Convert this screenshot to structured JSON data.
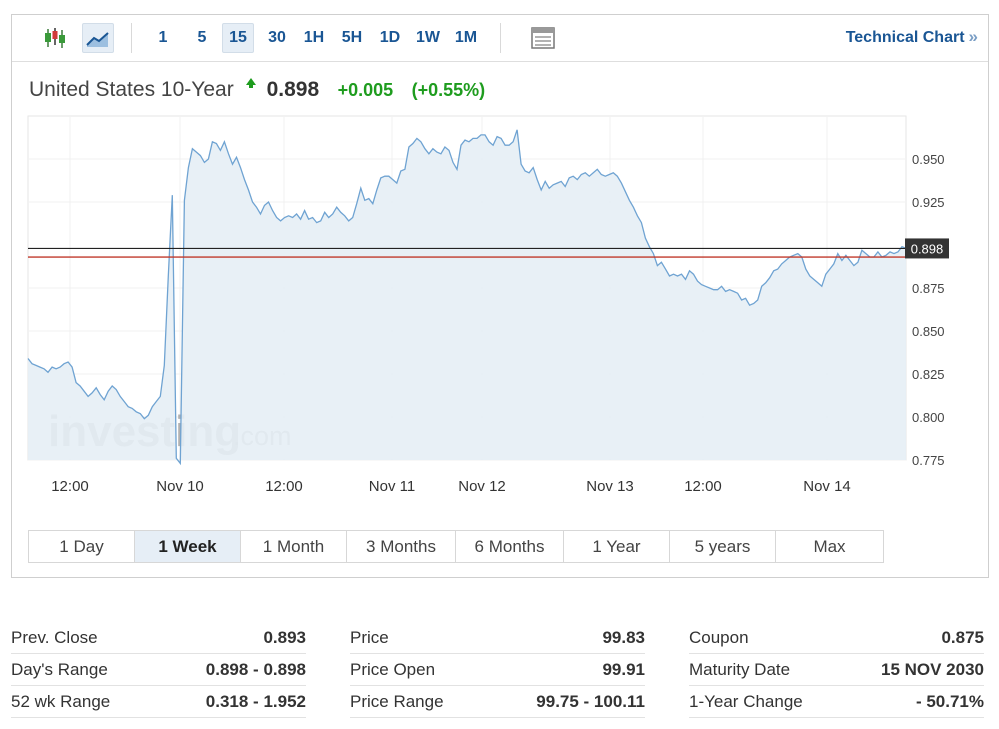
{
  "toolbar": {
    "intervals": [
      "1",
      "5",
      "15",
      "30",
      "1H",
      "5H",
      "1D",
      "1W",
      "1M"
    ],
    "active_interval": "15",
    "technical_chart_label": "Technical Chart",
    "technical_chart_arrows": "»",
    "icons": [
      "candlestick-icon",
      "line-chart-icon",
      "table-view-icon"
    ]
  },
  "quote": {
    "name": "United States 10-Year",
    "price": "0.898",
    "change": "+0.005",
    "change_pct": "(+0.55%)",
    "direction": "up"
  },
  "chart_data": {
    "type": "area",
    "y_ticks": [
      "0.950",
      "0.925",
      "0.875",
      "0.850",
      "0.825",
      "0.800",
      "0.775"
    ],
    "x_ticks": [
      "12:00",
      "Nov 10",
      "12:00",
      "Nov 11",
      "Nov 12",
      "Nov 13",
      "12:00",
      "Nov 14"
    ],
    "ylim": [
      0.775,
      0.975
    ],
    "current_value_label": "0.898",
    "current_value": 0.898,
    "prev_close": 0.893,
    "watermark": "investing",
    "watermark_suffix": ".com",
    "series": [
      {
        "x": [
          0,
          4,
          8,
          12,
          16,
          20,
          24,
          28,
          32,
          36,
          40,
          44,
          48,
          52,
          56,
          60,
          64,
          68,
          72,
          76,
          80,
          84,
          88,
          92,
          96,
          100,
          104,
          108,
          112,
          116,
          120,
          124,
          128,
          132,
          136,
          140,
          144,
          148,
          152,
          156,
          160,
          164,
          168,
          172,
          176,
          180,
          184,
          188,
          192,
          196,
          200,
          204,
          208,
          212,
          216,
          220,
          224,
          228,
          232,
          236,
          240,
          244,
          248,
          252,
          256,
          260,
          264,
          268,
          272,
          276,
          280,
          284,
          288,
          292,
          296,
          300,
          304,
          308,
          312,
          316,
          320,
          324,
          328,
          332,
          336,
          340,
          344,
          348,
          352,
          356,
          360,
          364,
          368,
          372,
          376,
          380,
          384,
          388,
          392,
          396,
          400,
          404,
          408,
          412,
          416,
          420,
          424,
          428,
          432,
          436,
          440,
          444,
          448,
          452,
          456,
          460,
          464,
          468,
          472,
          476,
          480,
          484,
          488,
          492,
          496,
          500,
          504,
          508,
          512,
          516,
          520,
          524,
          528,
          532,
          536,
          540,
          544,
          548,
          552,
          556,
          560,
          564,
          568,
          572,
          576,
          580,
          584,
          588,
          592,
          596,
          600,
          604,
          608,
          612,
          616,
          620,
          624,
          628,
          632,
          636,
          640,
          644,
          648,
          652,
          656,
          660,
          664,
          668,
          672,
          676,
          680,
          684,
          688,
          692,
          696,
          700,
          704,
          708,
          712,
          716,
          720,
          724,
          728,
          732,
          736,
          740,
          744,
          748,
          752,
          756,
          760,
          764,
          768,
          772,
          776,
          780,
          784,
          788,
          792,
          796,
          800,
          804,
          808,
          812,
          816,
          820,
          824,
          828,
          832,
          836,
          840,
          844,
          848,
          852,
          856,
          860,
          864,
          868,
          872,
          876
        ],
        "values": [
          0.834,
          0.831,
          0.83,
          0.829,
          0.828,
          0.826,
          0.829,
          0.828,
          0.829,
          0.831,
          0.832,
          0.829,
          0.82,
          0.818,
          0.815,
          0.812,
          0.814,
          0.817,
          0.813,
          0.81,
          0.815,
          0.818,
          0.816,
          0.812,
          0.809,
          0.806,
          0.805,
          0.803,
          0.802,
          0.799,
          0.801,
          0.806,
          0.809,
          0.812,
          0.83,
          0.882,
          0.929,
          0.776,
          0.773,
          0.926,
          0.945,
          0.956,
          0.954,
          0.952,
          0.948,
          0.95,
          0.96,
          0.959,
          0.955,
          0.96,
          0.953,
          0.947,
          0.951,
          0.945,
          0.938,
          0.932,
          0.925,
          0.922,
          0.918,
          0.923,
          0.925,
          0.92,
          0.916,
          0.914,
          0.916,
          0.917,
          0.916,
          0.918,
          0.915,
          0.92,
          0.915,
          0.916,
          0.913,
          0.914,
          0.919,
          0.916,
          0.918,
          0.922,
          0.919,
          0.917,
          0.914,
          0.916,
          0.924,
          0.933,
          0.926,
          0.927,
          0.924,
          0.932,
          0.939,
          0.94,
          0.94,
          0.938,
          0.936,
          0.943,
          0.944,
          0.957,
          0.959,
          0.962,
          0.96,
          0.956,
          0.953,
          0.956,
          0.954,
          0.953,
          0.957,
          0.955,
          0.948,
          0.944,
          0.958,
          0.961,
          0.96,
          0.962,
          0.962,
          0.964,
          0.964,
          0.96,
          0.958,
          0.963,
          0.962,
          0.958,
          0.958,
          0.96,
          0.967,
          0.947,
          0.943,
          0.942,
          0.945,
          0.938,
          0.932,
          0.937,
          0.933,
          0.935,
          0.936,
          0.937,
          0.934,
          0.939,
          0.94,
          0.938,
          0.941,
          0.942,
          0.94,
          0.942,
          0.944,
          0.941,
          0.94,
          0.941,
          0.942,
          0.94,
          0.936,
          0.931,
          0.926,
          0.922,
          0.917,
          0.913,
          0.904,
          0.899,
          0.895,
          0.888,
          0.89,
          0.886,
          0.882,
          0.883,
          0.882,
          0.883,
          0.88,
          0.885,
          0.883,
          0.879,
          0.877,
          0.876,
          0.875,
          0.874,
          0.874,
          0.876,
          0.873,
          0.874,
          0.873,
          0.872,
          0.868,
          0.869,
          0.865,
          0.866,
          0.868,
          0.876,
          0.878,
          0.881,
          0.885,
          0.886,
          0.889,
          0.891,
          0.893,
          0.894,
          0.895,
          0.893,
          0.886,
          0.882,
          0.88,
          0.878,
          0.876,
          0.883,
          0.886,
          0.889,
          0.895,
          0.891,
          0.894,
          0.891,
          0.888,
          0.89,
          0.897,
          0.895,
          0.893,
          0.893,
          0.896,
          0.893,
          0.894,
          0.896,
          0.895,
          0.896,
          0.899,
          0.898
        ]
      }
    ]
  },
  "ranges": [
    "1 Day",
    "1 Week",
    "1 Month",
    "3 Months",
    "6 Months",
    "1 Year",
    "5 years",
    "Max"
  ],
  "active_range": "1 Week",
  "stats": {
    "col1": [
      {
        "label": "Prev. Close",
        "value": "0.893"
      },
      {
        "label": "Day's Range",
        "value": "0.898 - 0.898"
      },
      {
        "label": "52 wk Range",
        "value": "0.318 - 1.952"
      }
    ],
    "col2": [
      {
        "label": "Price",
        "value": "99.83"
      },
      {
        "label": "Price Open",
        "value": "99.91"
      },
      {
        "label": "Price Range",
        "value": "99.75 - 100.11"
      }
    ],
    "col3": [
      {
        "label": "Coupon",
        "value": "0.875"
      },
      {
        "label": "Maturity Date",
        "value": "15 NOV 2030"
      },
      {
        "label": "1-Year Change",
        "value": "- 50.71%"
      }
    ]
  },
  "colors": {
    "line": "#6fa3d2",
    "fill": "#e5eef5",
    "link": "#1a5694",
    "up": "#1e9c1e",
    "prev_close_line": "#c0392b",
    "current_line": "#222222"
  }
}
